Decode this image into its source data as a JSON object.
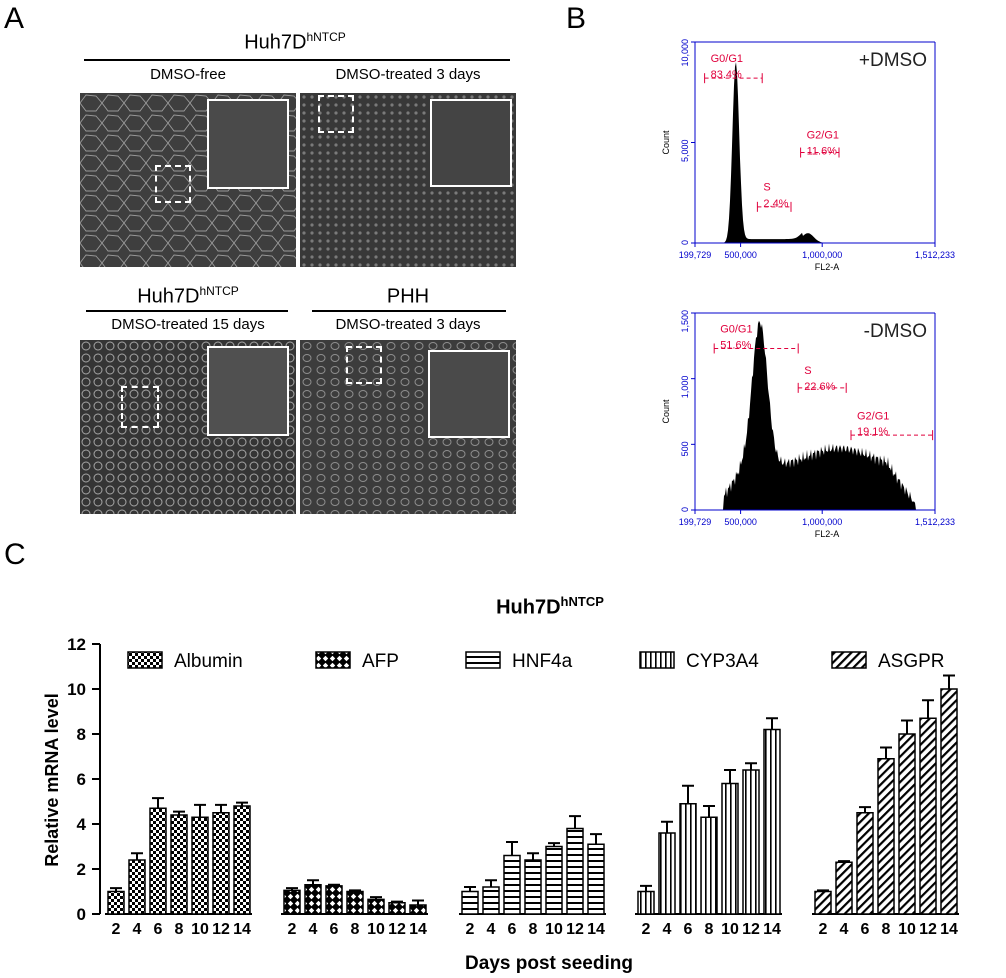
{
  "panel_a": {
    "letter": "A",
    "top_header": "Huh7D",
    "top_header_sup": "hNTCP",
    "images": [
      {
        "label": "DMSO-free",
        "tone": "#454545"
      },
      {
        "label": "DMSO-treated 3 days",
        "tone": "#3d3d3d"
      },
      {
        "label": "DMSO-treated 15 days",
        "group": "Huh7D",
        "group_sup": "hNTCP",
        "tone": "#505050"
      },
      {
        "label": "DMSO-treated 3 days",
        "group": "PHH",
        "group_sup": "",
        "tone": "#474747"
      }
    ]
  },
  "panel_b": {
    "letter": "B",
    "histograms": [
      {
        "condition": "+DMSO",
        "y_ticks": [
          "10,000",
          "5,000",
          "0"
        ],
        "x_ticks": [
          "199,729",
          "500,000",
          "1,000,000",
          "1,512,233"
        ],
        "y_label": "Count",
        "x_label": "FL2-A",
        "gates": [
          {
            "name": "G0/G1",
            "pct": "83.4%"
          },
          {
            "name": "S",
            "pct": "2.4%"
          },
          {
            "name": "G2/G1",
            "pct": "11.6%"
          }
        ]
      },
      {
        "condition": "-DMSO",
        "y_ticks": [
          "1,500",
          "1,000",
          "500",
          "0"
        ],
        "x_ticks": [
          "199,729",
          "500,000",
          "1,000,000",
          "1,512,233"
        ],
        "y_label": "Count",
        "x_label": "FL2-A",
        "gates": [
          {
            "name": "G0/G1",
            "pct": "51.6%"
          },
          {
            "name": "S",
            "pct": "22.6%"
          },
          {
            "name": "G2/G1",
            "pct": "19.1%"
          }
        ]
      }
    ],
    "axis_color": "#0000cc",
    "gate_color": "#e0003c"
  },
  "panel_c": {
    "letter": "C",
    "title": "Huh7D",
    "title_sup": "hNTCP"
  },
  "chart_data": {
    "type": "bar",
    "title": "Huh7DhNTCP",
    "xlabel": "Days post seeding",
    "ylabel": "Relative  mRNA level",
    "ylim": [
      0,
      12
    ],
    "yticks": [
      0,
      2,
      4,
      6,
      8,
      10,
      12
    ],
    "categories": [
      "2",
      "4",
      "6",
      "8",
      "10",
      "12",
      "14"
    ],
    "legend_position": "top",
    "series": [
      {
        "name": "Albumin",
        "pattern": "checker",
        "values": [
          1.0,
          2.4,
          4.7,
          4.4,
          4.3,
          4.5,
          4.8
        ],
        "errors": [
          0.15,
          0.3,
          0.45,
          0.15,
          0.55,
          0.35,
          0.15
        ]
      },
      {
        "name": "AFP",
        "pattern": "diamond",
        "values": [
          1.05,
          1.3,
          1.25,
          1.0,
          0.65,
          0.5,
          0.4
        ],
        "errors": [
          0.1,
          0.2,
          0.05,
          0.05,
          0.1,
          0.05,
          0.2
        ]
      },
      {
        "name": "HNF4a",
        "pattern": "hstripe",
        "values": [
          1.0,
          1.2,
          2.6,
          2.4,
          3.0,
          3.8,
          3.1
        ],
        "errors": [
          0.2,
          0.3,
          0.6,
          0.3,
          0.15,
          0.55,
          0.45
        ]
      },
      {
        "name": "CYP3A4",
        "pattern": "vstripe",
        "values": [
          1.0,
          3.6,
          4.9,
          4.3,
          5.8,
          6.4,
          8.2
        ],
        "errors": [
          0.25,
          0.5,
          0.8,
          0.5,
          0.6,
          0.3,
          0.5
        ]
      },
      {
        "name": "ASGPR",
        "pattern": "diag",
        "values": [
          1.0,
          2.3,
          4.5,
          6.9,
          8.0,
          8.7,
          10.0
        ],
        "errors": [
          0.05,
          0.05,
          0.25,
          0.5,
          0.6,
          0.8,
          0.6
        ]
      }
    ]
  }
}
